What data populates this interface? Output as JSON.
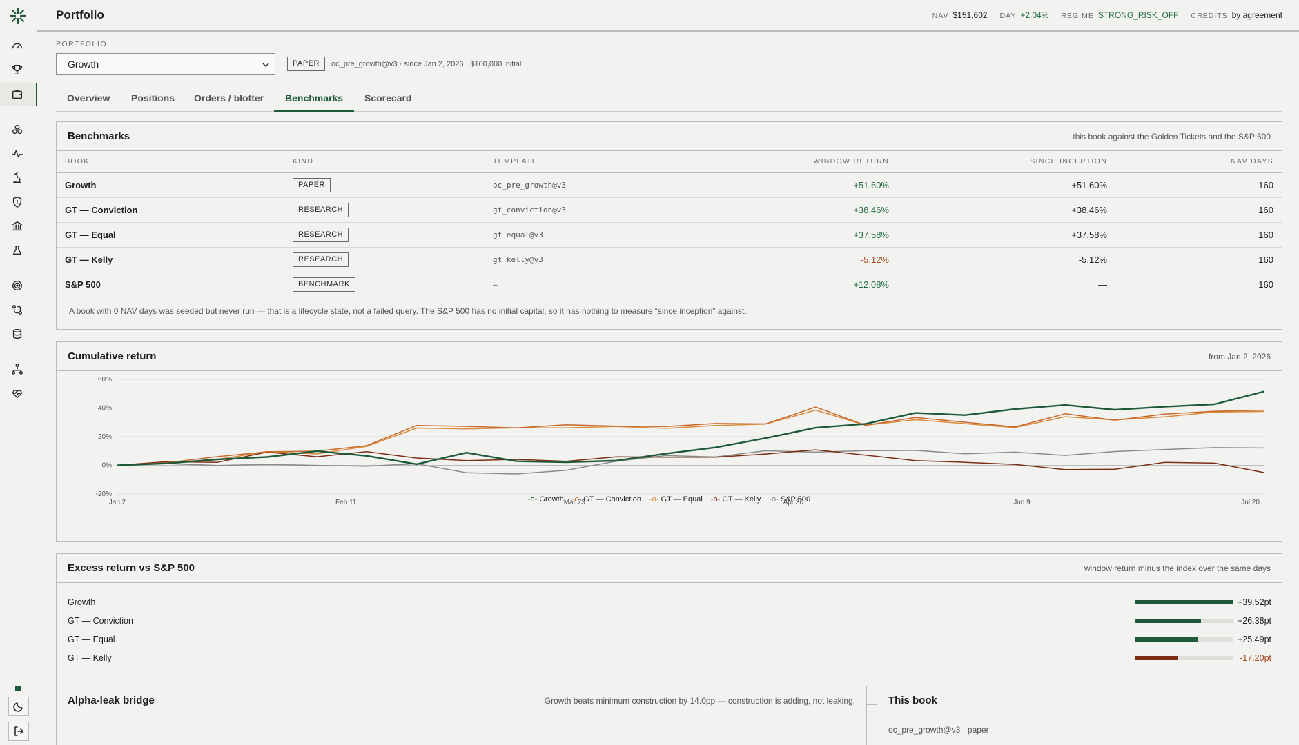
{
  "app": {
    "title": "Portfolio"
  },
  "topbar": {
    "nav_label": "NAV",
    "nav_value": "$151,602",
    "day_label": "DAY",
    "day_value": "+2.04%",
    "regime_label": "REGIME",
    "regime_value": "STRONG_RISK_OFF",
    "credits_label": "CREDITS",
    "credits_value": "by agreement"
  },
  "sidebar": {
    "icons": [
      "gauge-icon",
      "trophy-icon",
      "wallet-icon",
      "hexagons-icon",
      "pulse-icon",
      "microscope-icon",
      "shield-icon",
      "bank-icon",
      "flask-icon",
      "target-icon",
      "git-compare-icon",
      "database-icon",
      "network-icon",
      "heart-pulse-icon"
    ],
    "active": "wallet-icon"
  },
  "portfolio": {
    "section_label": "PORTFOLIO",
    "selected": "Growth",
    "badge": "PAPER",
    "meta": "oc_pre_growth@v3 · since Jan 2, 2026 · $100,000 initial"
  },
  "tabs": [
    {
      "label": "Overview",
      "active": false
    },
    {
      "label": "Positions",
      "active": false
    },
    {
      "label": "Orders / blotter",
      "active": false
    },
    {
      "label": "Benchmarks",
      "active": true
    },
    {
      "label": "Scorecard",
      "active": false
    }
  ],
  "benchmarks": {
    "title": "Benchmarks",
    "note": "this book against the Golden Tickets and the S&P 500",
    "columns": [
      "BOOK",
      "KIND",
      "TEMPLATE",
      "WINDOW RETURN",
      "SINCE INCEPTION",
      "NAV DAYS"
    ],
    "rows": [
      {
        "book": "Growth",
        "kind": "PAPER",
        "template": "oc_pre_growth@v3",
        "window": "+51.60%",
        "inception": "+51.60%",
        "days": "160",
        "tone": "pos"
      },
      {
        "book": "GT — Conviction",
        "kind": "RESEARCH",
        "template": "gt_conviction@v3",
        "window": "+38.46%",
        "inception": "+38.46%",
        "days": "160",
        "tone": "pos"
      },
      {
        "book": "GT — Equal",
        "kind": "RESEARCH",
        "template": "gt_equal@v3",
        "window": "+37.58%",
        "inception": "+37.58%",
        "days": "160",
        "tone": "pos"
      },
      {
        "book": "GT — Kelly",
        "kind": "RESEARCH",
        "template": "gt_kelly@v3",
        "window": "-5.12%",
        "inception": "-5.12%",
        "days": "160",
        "tone": "neg"
      },
      {
        "book": "S&P 500",
        "kind": "BENCHMARK",
        "template": "—",
        "window": "+12.08%",
        "inception": "—",
        "days": "160",
        "tone": "pos"
      }
    ],
    "footnote": "A book with 0 NAV days was seeded but never run — that is a lifecycle state, not a failed query. The S&P 500 has no initial capital, so it has nothing to measure “since inception” against."
  },
  "cumulative": {
    "title": "Cumulative return",
    "note": "from Jan 2, 2026"
  },
  "chart_data": {
    "type": "line",
    "title": "Cumulative return",
    "xlabel": "",
    "ylabel": "",
    "x_ticks": [
      "Jan 2",
      "Feb 11",
      "Mar 23",
      "Apr 30",
      "Jun 9",
      "Jul 20"
    ],
    "y_ticks": [
      "60%",
      "40%",
      "20%",
      "0%",
      "-20%"
    ],
    "ylim": [
      -20,
      60
    ],
    "grid": true,
    "legend_position": "bottom",
    "x": [
      "Jan 2",
      "Jan 12",
      "Jan 22",
      "Feb 1",
      "Feb 11",
      "Feb 21",
      "Mar 3",
      "Mar 13",
      "Mar 23",
      "Apr 2",
      "Apr 12",
      "Apr 22",
      "Apr 30",
      "May 10",
      "May 20",
      "May 30",
      "Jun 9",
      "Jun 19",
      "Jun 29",
      "Jul 9",
      "Jul 20",
      "Jul 30",
      "Aug 9",
      "Aug 19"
    ],
    "series": [
      {
        "name": "Growth",
        "color": "#1e5a3a",
        "values": [
          0,
          2,
          3,
          7,
          9,
          7,
          1,
          8,
          4,
          1,
          4,
          8,
          12,
          20,
          25,
          30,
          36,
          35,
          40,
          41,
          40,
          40,
          43,
          51.6
        ]
      },
      {
        "name": "GT — Conviction",
        "color": "#c8692a",
        "values": [
          0,
          3,
          5,
          10,
          10,
          13,
          29,
          26,
          27,
          28,
          27,
          28,
          28,
          30,
          40,
          28,
          34,
          29,
          28,
          35,
          32,
          36,
          37,
          38.5
        ]
      },
      {
        "name": "GT — Equal",
        "color": "#d98a3a",
        "values": [
          0,
          2,
          4,
          9,
          9,
          12,
          27,
          25,
          26,
          27,
          26,
          27,
          27,
          29,
          39,
          27,
          33,
          28,
          27,
          34,
          31,
          35,
          36,
          37.6
        ]
      },
      {
        "name": "GT — Kelly",
        "color": "#7a2e12",
        "values": [
          0,
          2,
          3,
          8,
          7,
          9,
          5,
          4,
          3,
          4,
          5,
          6,
          6,
          7,
          12,
          6,
          4,
          2,
          0,
          -2,
          -4,
          3,
          1,
          -5.1
        ]
      },
      {
        "name": "S&P 500",
        "color": "#8a8a8a",
        "values": [
          0,
          0,
          1,
          0,
          0,
          0,
          0,
          -4,
          -7,
          -3,
          3,
          6,
          7,
          9,
          10,
          10,
          10,
          9,
          8,
          8,
          9,
          11,
          13,
          12.1
        ]
      }
    ]
  },
  "excess": {
    "title": "Excess return vs S&P 500",
    "note": "window return minus the index over the same days",
    "rows": [
      {
        "label": "Growth",
        "value": "+39.52pt",
        "fraction": 1.0,
        "tone": "pos"
      },
      {
        "label": "GT — Conviction",
        "value": "+26.38pt",
        "fraction": 0.67,
        "tone": "pos"
      },
      {
        "label": "GT — Equal",
        "value": "+25.49pt",
        "fraction": 0.645,
        "tone": "pos"
      },
      {
        "label": "GT — Kelly",
        "value": "-17.20pt",
        "fraction": 0.435,
        "tone": "neg"
      }
    ]
  },
  "alpha_leak": {
    "title": "Alpha-leak bridge",
    "note": "Growth beats minimum construction by 14.0pp — construction is adding, not leaking."
  },
  "this_book": {
    "title": "This book",
    "line": "oc_pre_growth@v3 · paper"
  },
  "colors": {
    "accent": "#1e5a3a",
    "positive": "#1e6a3f",
    "negative": "#a5441a"
  }
}
